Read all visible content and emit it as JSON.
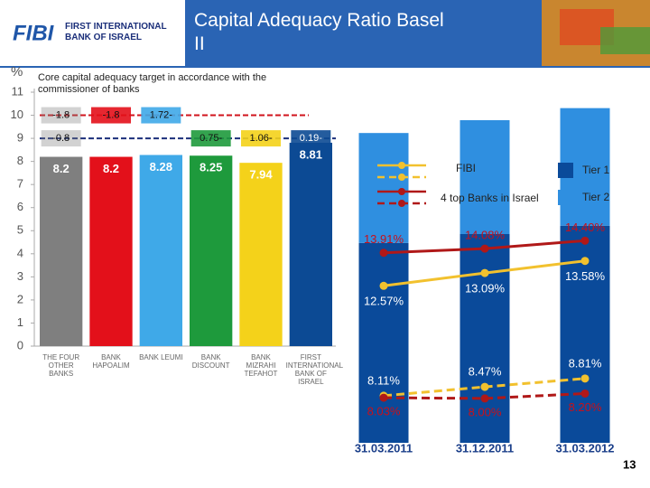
{
  "header": {
    "logo": "FIBI",
    "bank_name": "FIRST INTERNATIONAL BANK OF ISRAEL",
    "title": "Capital Adequacy Ratio Basel II"
  },
  "page_number": "13",
  "chart_data": [
    {
      "type": "bar",
      "y_label": "%",
      "annotation": "Core capital adequacy target in accordance with the commissioner of banks",
      "categories": [
        "THE FOUR OTHER BANKS",
        "BANK HAPOALIM",
        "BANK LEUMI",
        "BANK DISCOUNT",
        "BANK MIZRAHI TEFAHOT",
        "FIRST INTERNATIONAL BANK OF ISRAEL"
      ],
      "values": [
        8.2,
        8.2,
        8.28,
        8.25,
        7.94,
        8.81
      ],
      "colors": [
        "#7f7f7f",
        "#e3101a",
        "#3fa9e8",
        "#1e9a3c",
        "#f4d21a",
        "#0c4a94"
      ],
      "ylim": [
        0,
        11
      ],
      "yticks": [
        0,
        1,
        2,
        3,
        4,
        5,
        6,
        7,
        8,
        9,
        10,
        11
      ],
      "targets": [
        {
          "value": 10,
          "color": "#d0141c"
        },
        {
          "value": 9,
          "color": "#1b2f7a"
        }
      ],
      "gap_labels": [
        [
          "-1.8",
          "-0.8"
        ],
        [
          "-1.8"
        ],
        [
          "1.72-"
        ],
        [
          "0.75-"
        ],
        [
          "1.06-"
        ],
        [
          "0.19-"
        ]
      ]
    },
    {
      "type": "stacked-bar-line",
      "x": [
        "31.03.2011",
        "31.12.2011",
        "31.03.2012"
      ],
      "ylim": [
        6.2,
        15
      ],
      "bars": [
        {
          "name": "Tier 1",
          "color": "#0a4a9a",
          "values": [
            8.11,
            8.47,
            8.81
          ]
        },
        {
          "name": "Tier 2",
          "color": "#2f8fe0",
          "values": [
            4.46,
            4.62,
            4.77
          ]
        }
      ],
      "series": [
        {
          "name": "FIBI",
          "color": "#f2c12e",
          "label_color": "#ffffff",
          "total": {
            "values": [
              12.57,
              13.09,
              13.58
            ],
            "value_labels": [
              "12.57%",
              "13.09%",
              "13.58%"
            ]
          },
          "tier1": {
            "values": [
              8.11,
              8.47,
              8.81
            ],
            "value_labels": [
              "8.11%",
              "8.47%",
              "8.81%"
            ]
          }
        },
        {
          "name": "4 top Banks in Israel",
          "color": "#b01818",
          "label_color": "#c8101a",
          "total": {
            "values": [
              13.91,
              14.08,
              14.4
            ],
            "value_labels": [
              "13.91%",
              "14.08%",
              "14.40%"
            ]
          },
          "tier1": {
            "values": [
              8.03,
              8.0,
              8.2
            ],
            "value_labels": [
              "8.03%",
              "8.00%",
              "8.20%"
            ]
          }
        }
      ]
    }
  ]
}
